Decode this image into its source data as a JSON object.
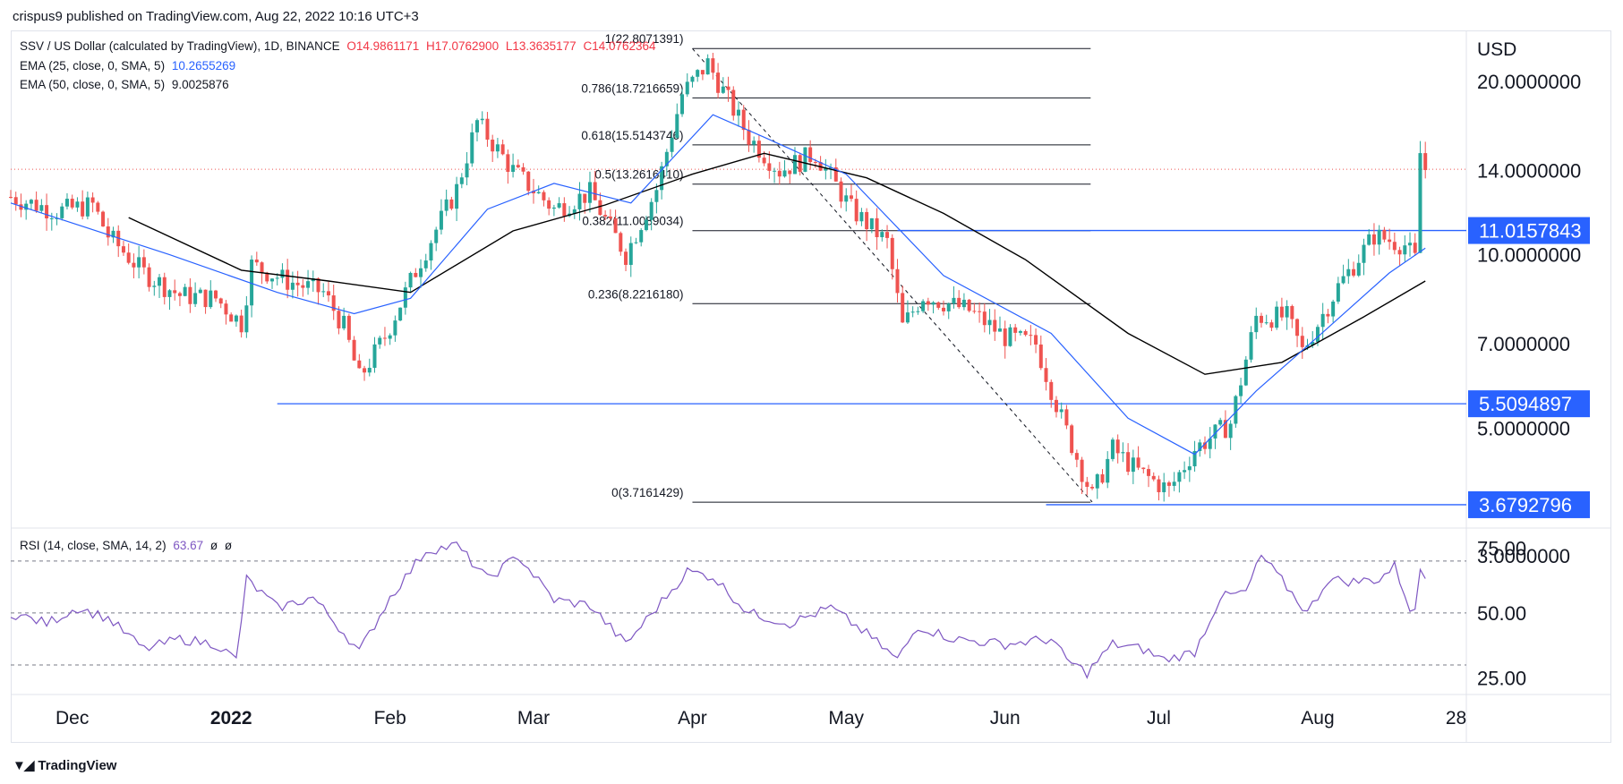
{
  "publisher_line": "crispus9 published on TradingView.com, Aug 22, 2022 10:16 UTC+3",
  "legend": {
    "symbol": "SSV / US Dollar (calculated by TradingView), 1D, BINANCE",
    "open": "O14.9861171",
    "high": "H17.0762900",
    "low": "L13.3635177",
    "close": "C14.0762364",
    "ema25_label": "EMA (25, close, 0, SMA, 5)",
    "ema25_value": "10.2655269",
    "ema50_label": "EMA (50, close, 0, SMA, 5)",
    "ema50_value": "9.0025876",
    "rsi_label": "RSI (14, close, SMA, 14, 2)",
    "rsi_value": "63.67",
    "rsi_extra1": "ø",
    "rsi_extra2": "ø"
  },
  "footer_logo": "TradingView",
  "colors": {
    "up": "#26a69a",
    "down": "#ef5350",
    "ema25": "#2962ff",
    "ema50": "#000000",
    "rsi": "#7e57c2",
    "hline": "#2962ff",
    "label_bg": "#2962ff",
    "last_price": "#ef5350"
  },
  "chart_data": {
    "type": "candlestick",
    "currency": "USD",
    "price_axis_labels": [
      "20.0000000",
      "14.0000000",
      "10.0000000",
      "7.0000000",
      "5.0000000",
      "3.0000000"
    ],
    "price_axis_values": [
      20,
      14,
      10,
      7,
      5,
      3
    ],
    "price_scale": "log",
    "price_range": [
      3.4,
      24
    ],
    "x_labels": [
      "Dec",
      "2022",
      "Feb",
      "Mar",
      "Apr",
      "May",
      "Jun",
      "Jul",
      "Aug",
      "28"
    ],
    "x_label_dates": [
      "2021-12-01",
      "2022-01-01",
      "2022-02-01",
      "2022-03-01",
      "2022-04-01",
      "2022-05-01",
      "2022-06-01",
      "2022-07-01",
      "2022-08-01",
      "2022-08-28"
    ],
    "date_range": [
      "2021-11-19",
      "2022-08-30"
    ],
    "horizontal_lines": [
      {
        "label": "11.0157843",
        "value": 11.0157843,
        "from": "2022-05-11"
      },
      {
        "label": "5.5094897",
        "value": 5.5094897,
        "from": "2022-01-10"
      },
      {
        "label": "3.6792796",
        "value": 3.6792796,
        "from": "2022-06-09"
      }
    ],
    "fibonacci": {
      "from_date": "2022-04-01",
      "to_date": "2022-06-17",
      "anchor_high": 22.8071391,
      "anchor_low": 3.7161429,
      "levels": [
        {
          "label": "1(22.8071391)",
          "value": 22.8071391
        },
        {
          "label": "0.786(18.7216659)",
          "value": 18.7216659
        },
        {
          "label": "0.618(15.5143746)",
          "value": 15.5143746
        },
        {
          "label": "0.5(13.2616410)",
          "value": 13.261641
        },
        {
          "label": "0.382(11.0089034)",
          "value": 11.0089034
        },
        {
          "label": "0.236(8.2216180)",
          "value": 8.221618
        },
        {
          "label": "0(3.7161429)",
          "value": 3.7161429
        }
      ]
    },
    "trend_line": {
      "from": [
        "2022-04-01",
        22.8
      ],
      "to": [
        "2022-06-18",
        3.72
      ]
    },
    "last_price": 14.0762364,
    "close_path": [
      [
        "2021-11-19",
        12.6
      ],
      [
        "2021-11-28",
        11.9
      ],
      [
        "2021-12-05",
        12.2
      ],
      [
        "2021-12-08",
        10.8
      ],
      [
        "2021-12-15",
        9.3
      ],
      [
        "2021-12-22",
        8.5
      ],
      [
        "2021-12-29",
        8.4
      ],
      [
        "2022-01-03",
        7.6
      ],
      [
        "2022-01-05",
        9.6
      ],
      [
        "2022-01-12",
        9.0
      ],
      [
        "2022-01-19",
        8.6
      ],
      [
        "2022-01-23",
        7.5
      ],
      [
        "2022-01-26",
        6.1
      ],
      [
        "2022-01-31",
        7.2
      ],
      [
        "2022-02-07",
        9.8
      ],
      [
        "2022-02-14",
        13.0
      ],
      [
        "2022-02-18",
        17.0
      ],
      [
        "2022-02-25",
        14.0
      ],
      [
        "2022-03-05",
        12.0
      ],
      [
        "2022-03-12",
        12.8
      ],
      [
        "2022-03-19",
        10.0
      ],
      [
        "2022-03-25",
        13.0
      ],
      [
        "2022-03-30",
        19.0
      ],
      [
        "2022-04-04",
        21.5
      ],
      [
        "2022-04-12",
        16.0
      ],
      [
        "2022-04-18",
        14.0
      ],
      [
        "2022-04-25",
        15.0
      ],
      [
        "2022-05-02",
        12.0
      ],
      [
        "2022-05-09",
        10.5
      ],
      [
        "2022-05-12",
        7.5
      ],
      [
        "2022-05-16",
        8.5
      ],
      [
        "2022-05-25",
        8.0
      ],
      [
        "2022-06-01",
        7.2
      ],
      [
        "2022-06-07",
        7.0
      ],
      [
        "2022-06-12",
        5.2
      ],
      [
        "2022-06-18",
        3.8
      ],
      [
        "2022-06-22",
        4.6
      ],
      [
        "2022-06-27",
        4.2
      ],
      [
        "2022-07-03",
        3.9
      ],
      [
        "2022-07-08",
        4.6
      ],
      [
        "2022-07-15",
        5.1
      ],
      [
        "2022-07-20",
        7.8
      ],
      [
        "2022-07-26",
        7.8
      ],
      [
        "2022-07-29",
        6.8
      ],
      [
        "2022-08-05",
        8.8
      ],
      [
        "2022-08-12",
        10.8
      ],
      [
        "2022-08-18",
        10.4
      ],
      [
        "2022-08-20",
        9.8
      ],
      [
        "2022-08-21",
        15.0
      ],
      [
        "2022-08-22",
        14.08
      ]
    ],
    "ema25_path": [
      [
        "2021-11-19",
        12.3
      ],
      [
        "2021-12-20",
        10.0
      ],
      [
        "2022-01-10",
        8.6
      ],
      [
        "2022-01-25",
        7.9
      ],
      [
        "2022-02-05",
        8.4
      ],
      [
        "2022-02-20",
        12.0
      ],
      [
        "2022-03-05",
        13.3
      ],
      [
        "2022-03-20",
        12.3
      ],
      [
        "2022-04-05",
        17.5
      ],
      [
        "2022-04-15",
        16.0
      ],
      [
        "2022-05-01",
        13.8
      ],
      [
        "2022-05-20",
        9.2
      ],
      [
        "2022-06-10",
        7.3
      ],
      [
        "2022-06-25",
        5.2
      ],
      [
        "2022-07-08",
        4.5
      ],
      [
        "2022-07-20",
        5.8
      ],
      [
        "2022-08-01",
        7.2
      ],
      [
        "2022-08-15",
        9.3
      ],
      [
        "2022-08-22",
        10.27
      ]
    ],
    "ema50_path": [
      [
        "2021-12-12",
        11.6
      ],
      [
        "2022-01-03",
        9.4
      ],
      [
        "2022-01-20",
        9.0
      ],
      [
        "2022-02-05",
        8.6
      ],
      [
        "2022-02-25",
        11.0
      ],
      [
        "2022-03-15",
        12.2
      ],
      [
        "2022-04-01",
        13.8
      ],
      [
        "2022-04-15",
        15.0
      ],
      [
        "2022-05-05",
        13.6
      ],
      [
        "2022-05-20",
        11.8
      ],
      [
        "2022-06-05",
        9.8
      ],
      [
        "2022-06-25",
        7.3
      ],
      [
        "2022-07-10",
        6.2
      ],
      [
        "2022-07-25",
        6.5
      ],
      [
        "2022-08-10",
        7.8
      ],
      [
        "2022-08-22",
        9.0
      ]
    ],
    "rsi": {
      "axis_labels": [
        "75.00",
        "50.00",
        "25.00"
      ],
      "axis_values": [
        75,
        50,
        25
      ],
      "bands": [
        70,
        50,
        30
      ],
      "range": [
        20,
        82
      ],
      "path": [
        [
          "2021-11-19",
          50
        ],
        [
          "2021-11-26",
          46
        ],
        [
          "2021-12-02",
          52
        ],
        [
          "2021-12-08",
          48
        ],
        [
          "2021-12-15",
          36
        ],
        [
          "2021-12-22",
          40
        ],
        [
          "2021-12-29",
          38
        ],
        [
          "2022-01-02",
          32
        ],
        [
          "2022-01-04",
          63
        ],
        [
          "2022-01-10",
          52
        ],
        [
          "2022-01-17",
          56
        ],
        [
          "2022-01-24",
          40
        ],
        [
          "2022-01-26",
          35
        ],
        [
          "2022-02-01",
          56
        ],
        [
          "2022-02-08",
          74
        ],
        [
          "2022-02-14",
          76
        ],
        [
          "2022-02-20",
          63
        ],
        [
          "2022-02-26",
          72
        ],
        [
          "2022-03-05",
          55
        ],
        [
          "2022-03-12",
          53
        ],
        [
          "2022-03-19",
          38
        ],
        [
          "2022-03-25",
          52
        ],
        [
          "2022-03-31",
          66
        ],
        [
          "2022-04-05",
          64
        ],
        [
          "2022-04-12",
          50
        ],
        [
          "2022-04-20",
          46
        ],
        [
          "2022-04-28",
          52
        ],
        [
          "2022-05-05",
          42
        ],
        [
          "2022-05-11",
          32
        ],
        [
          "2022-05-15",
          45
        ],
        [
          "2022-05-22",
          40
        ],
        [
          "2022-06-01",
          38
        ],
        [
          "2022-06-10",
          40
        ],
        [
          "2022-06-13",
          32
        ],
        [
          "2022-06-17",
          27
        ],
        [
          "2022-06-22",
          38
        ],
        [
          "2022-06-28",
          36
        ],
        [
          "2022-07-02",
          32
        ],
        [
          "2022-07-08",
          35
        ],
        [
          "2022-07-13",
          56
        ],
        [
          "2022-07-18",
          58
        ],
        [
          "2022-07-21",
          72
        ],
        [
          "2022-07-26",
          60
        ],
        [
          "2022-07-30",
          50
        ],
        [
          "2022-08-03",
          63
        ],
        [
          "2022-08-08",
          62
        ],
        [
          "2022-08-13",
          63
        ],
        [
          "2022-08-16",
          68
        ],
        [
          "2022-08-19",
          52
        ],
        [
          "2022-08-20",
          50
        ],
        [
          "2022-08-21",
          67
        ],
        [
          "2022-08-22",
          63.67
        ]
      ]
    }
  }
}
